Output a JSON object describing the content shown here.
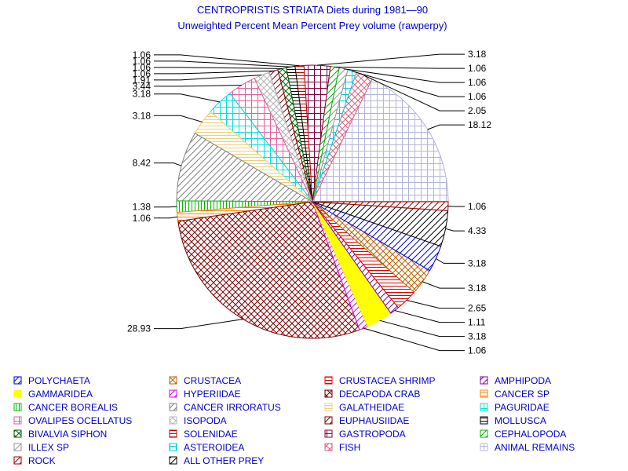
{
  "chart_data": {
    "type": "pie",
    "title": "CENTROPRISTIS STRIATA Diets during 1981—90",
    "subtitle": "Unweighted Percent Mean Percent Prey  volume (rawperpy)",
    "slices": [
      {
        "label": "ANIMAL REMAINS",
        "value": 18.12,
        "shown": "18.12",
        "color": "#b4b4dc",
        "pattern": "grid"
      },
      {
        "label": "FISH",
        "value": 2.05,
        "shown": "2.05",
        "color": "#e06080",
        "pattern": "cross"
      },
      {
        "label": "ASTEROIDEA",
        "value": 1.06,
        "shown": "1.06",
        "color": "#00d0e0",
        "pattern": "grid"
      },
      {
        "label": "ILLEX SP",
        "value": 1.06,
        "shown": "1.06",
        "color": "#999999",
        "pattern": "diag"
      },
      {
        "label": "CEPHALOPODA",
        "value": 1.06,
        "shown": "1.06",
        "color": "#00b400",
        "pattern": "diag"
      },
      {
        "label": "GASTROPODA",
        "value": 3.18,
        "shown": "3.18",
        "color": "#800040",
        "pattern": "grid"
      },
      {
        "label": "SOLENIDAE",
        "value": 1.06,
        "shown": "1.06",
        "color": "#c00000",
        "pattern": "horiz"
      },
      {
        "label": "MOLLUSCA",
        "value": 1.06,
        "shown": "1.06",
        "color": "#000000",
        "pattern": "horiz"
      },
      {
        "label": "BIVALVIA SIPHON",
        "value": 1.06,
        "shown": "1.06",
        "color": "#006000",
        "pattern": "cross"
      },
      {
        "label": "EUPHAUSIIDAE",
        "value": 1.06,
        "shown": "1.06",
        "color": "#800000",
        "pattern": "diag"
      },
      {
        "label": "ISOPODA",
        "value": 1.91,
        "shown": "1.91",
        "color": "#b4b4b4",
        "pattern": "cross"
      },
      {
        "label": "OVALIPES OCELLATUS",
        "value": 3.44,
        "shown": "3.44",
        "color": "#e060a0",
        "pattern": "grid"
      },
      {
        "label": "PAGURIDAE",
        "value": 3.18,
        "shown": "3.18",
        "color": "#00e0e0",
        "pattern": "grid"
      },
      {
        "label": "GALATHEIDAE",
        "value": 3.18,
        "shown": "3.18",
        "color": "#f0d070",
        "pattern": "horiz"
      },
      {
        "label": "CANCER IRRORATUS",
        "value": 8.42,
        "shown": "8.42",
        "color": "#808080",
        "pattern": "diag"
      },
      {
        "label": "CANCER BOREALIS",
        "value": 1.38,
        "shown": "1.38",
        "color": "#00c000",
        "pattern": "vert"
      },
      {
        "label": "CANCER SP",
        "value": 1.06,
        "shown": "1.06",
        "color": "#ff8000",
        "pattern": "horiz"
      },
      {
        "label": "DECAPODA CRAB",
        "value": 28.93,
        "shown": "28.93",
        "color": "#800000",
        "pattern": "cross"
      },
      {
        "label": "HYPERIIDAE",
        "value": 1.06,
        "shown": "1.06",
        "color": "#e000e0",
        "pattern": "diag"
      },
      {
        "label": "GAMMARIDEA",
        "value": 3.18,
        "shown": "3.18",
        "color": "#ffff00",
        "pattern": "solid"
      },
      {
        "label": "AMPHIPODA",
        "value": 1.11,
        "shown": "1.11",
        "color": "#8000a0",
        "pattern": "diag"
      },
      {
        "label": "CRUSTACEA SHRIMP",
        "value": 2.65,
        "shown": "2.65",
        "color": "#e00000",
        "pattern": "horiz"
      },
      {
        "label": "CRUSTACEA",
        "value": 3.18,
        "shown": "3.18",
        "color": "#c06000",
        "pattern": "cross"
      },
      {
        "label": "POLYCHAETA",
        "value": 3.18,
        "shown": "3.18",
        "color": "#0000e0",
        "pattern": "diag"
      },
      {
        "label": "ALL OTHER PREY",
        "value": 4.33,
        "shown": "4.33",
        "color": "#000000",
        "pattern": "diag"
      },
      {
        "label": "ROCK",
        "value": 1.06,
        "shown": "1.06",
        "color": "#a00000",
        "pattern": "diag"
      }
    ],
    "legend_items": [
      "POLYCHAETA",
      "CRUSTACEA",
      "CRUSTACEA SHRIMP",
      "AMPHIPODA",
      "GAMMARIDEA",
      "HYPERIIDAE",
      "DECAPODA CRAB",
      "CANCER SP",
      "CANCER BOREALIS",
      "CANCER IRRORATUS",
      "GALATHEIDAE",
      "PAGURIDAE",
      "OVALIPES OCELLATUS",
      "ISOPODA",
      "EUPHAUSIIDAE",
      "MOLLUSCA",
      "BIVALVIA SIPHON",
      "SOLENIDAE",
      "GASTROPODA",
      "CEPHALOPODA",
      "ILLEX SP",
      "ASTEROIDEA",
      "FISH",
      "ANIMAL REMAINS",
      "ROCK",
      "ALL OTHER PREY"
    ],
    "legend_placement": "bottom"
  }
}
